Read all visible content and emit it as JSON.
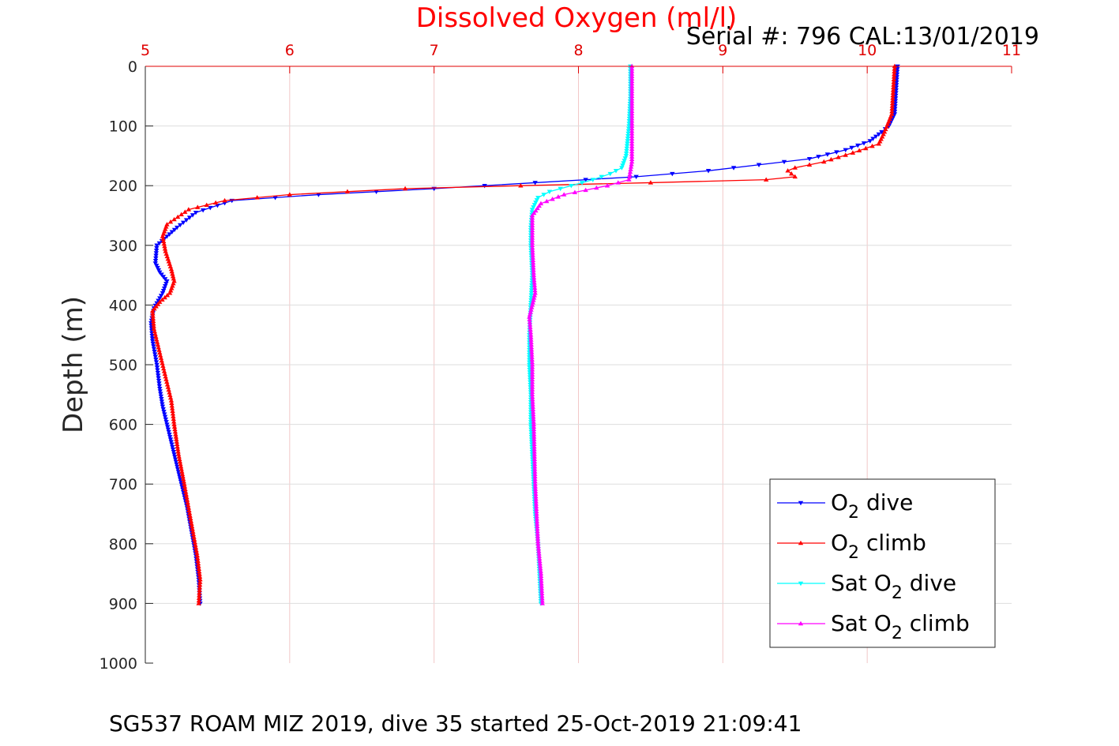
{
  "chart_data": {
    "type": "line",
    "title": "",
    "xlabel": "Dissolved Oxygen (ml/l)",
    "ylabel": "Depth (m)",
    "xlim": [
      5,
      11
    ],
    "ylim": [
      0,
      1000
    ],
    "y_reversed": true,
    "x_axis_position": "top",
    "grid": true,
    "x_ticks": [
      5,
      6,
      7,
      8,
      9,
      10,
      11
    ],
    "x_tick_labels": [
      "5",
      "6",
      "7",
      "8",
      "9",
      "10",
      "11"
    ],
    "y_ticks": [
      0,
      100,
      200,
      300,
      400,
      500,
      600,
      700,
      800,
      900,
      1000
    ],
    "y_tick_labels": [
      "0",
      "100",
      "200",
      "300",
      "400",
      "500",
      "600",
      "700",
      "800",
      "900",
      "1000"
    ],
    "legend_position": "bottom-right",
    "annotation_serial": "Serial #: 796  CAL:13/01/2019",
    "caption": "SG537 ROAM MIZ 2019, dive 35 started 25-Oct-2019 21:09:41",
    "series": [
      {
        "name_main": "O",
        "name_sub": "2",
        "name_tail": " dive",
        "name_prefix": "",
        "color": "#0000ff",
        "marker": "triangle-down",
        "x": [
          10.21,
          10.2,
          10.19,
          10.15,
          10.1,
          10.02,
          9.85,
          9.6,
          9.25,
          8.9,
          8.4,
          7.7,
          7.0,
          6.2,
          5.6,
          5.35,
          5.22,
          5.15,
          5.08,
          5.07,
          5.1,
          5.15,
          5.12,
          5.06,
          5.04,
          5.05,
          5.08,
          5.1,
          5.12,
          5.15,
          5.2,
          5.25,
          5.29,
          5.32,
          5.35,
          5.37,
          5.38
        ],
        "y": [
          0,
          40,
          80,
          100,
          110,
          125,
          140,
          155,
          165,
          175,
          185,
          195,
          205,
          215,
          225,
          245,
          270,
          285,
          300,
          330,
          345,
          360,
          380,
          405,
          430,
          460,
          500,
          540,
          570,
          600,
          650,
          700,
          740,
          780,
          820,
          860,
          900
        ]
      },
      {
        "name_main": "O",
        "name_sub": "2",
        "name_tail": " climb",
        "name_prefix": "",
        "color": "#ff0000",
        "marker": "triangle-up",
        "x": [
          10.19,
          10.18,
          10.17,
          10.12,
          10.08,
          9.9,
          9.7,
          9.5,
          9.45,
          9.5,
          9.3,
          8.5,
          7.6,
          6.8,
          6.0,
          5.55,
          5.3,
          5.15,
          5.12,
          5.14,
          5.18,
          5.2,
          5.17,
          5.1,
          5.05,
          5.06,
          5.1,
          5.14,
          5.18,
          5.2,
          5.23,
          5.27,
          5.3,
          5.33,
          5.36,
          5.38,
          5.37
        ],
        "y": [
          0,
          40,
          80,
          110,
          130,
          145,
          160,
          170,
          175,
          185,
          190,
          195,
          200,
          205,
          215,
          225,
          240,
          265,
          285,
          310,
          340,
          360,
          380,
          395,
          410,
          440,
          480,
          520,
          560,
          600,
          650,
          700,
          740,
          780,
          820,
          860,
          900
        ]
      },
      {
        "name_main": "Sat O",
        "name_sub": "2",
        "name_tail": " dive",
        "name_prefix": "",
        "color": "#00ffff",
        "marker": "triangle-down",
        "x": [
          8.36,
          8.36,
          8.35,
          8.33,
          8.3,
          8.22,
          8.1,
          7.95,
          7.8,
          7.72,
          7.68,
          7.67,
          7.67,
          7.68,
          7.67,
          7.66,
          7.66,
          7.67,
          7.67,
          7.69,
          7.7,
          7.72,
          7.74
        ],
        "y": [
          0,
          50,
          100,
          150,
          170,
          180,
          190,
          200,
          210,
          220,
          240,
          270,
          300,
          350,
          400,
          450,
          500,
          550,
          600,
          700,
          750,
          800,
          900
        ]
      },
      {
        "name_main": "Sat O",
        "name_sub": "2",
        "name_tail": " climb",
        "name_prefix": "",
        "color": "#ff00ff",
        "marker": "triangle-up",
        "x": [
          8.37,
          8.37,
          8.37,
          8.37,
          8.35,
          8.2,
          7.9,
          7.74,
          7.68,
          7.68,
          7.69,
          7.7,
          7.68,
          7.66,
          7.67,
          7.68,
          7.68,
          7.69,
          7.7,
          7.72,
          7.74,
          7.75
        ],
        "y": [
          0,
          50,
          100,
          160,
          190,
          200,
          215,
          230,
          250,
          300,
          350,
          380,
          400,
          420,
          450,
          500,
          550,
          600,
          700,
          800,
          850,
          900
        ]
      }
    ]
  }
}
